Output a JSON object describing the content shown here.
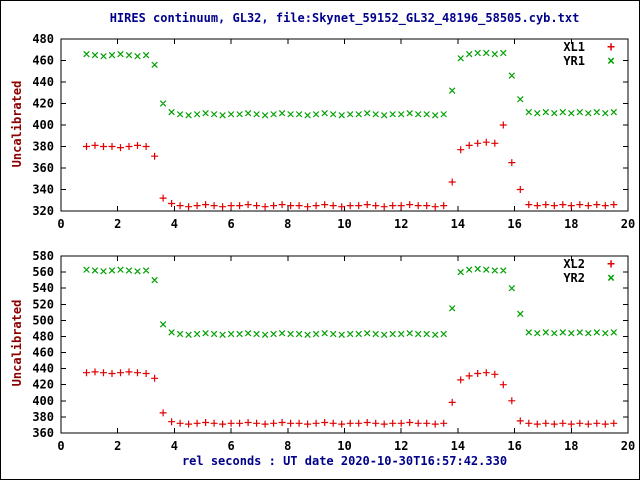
{
  "title": "HIRES continuum, GL32, file:Skynet_59152_GL32_48196_58505.cyb.txt",
  "xlabel": "rel seconds : UT date 2020-10-30T16:57:42.330",
  "colors": {
    "title": "#00008B",
    "xlabel": "#00008B",
    "axis_label": "#8B0000",
    "axis": "#000000",
    "red": "#E00000",
    "green": "#00A000"
  },
  "chart_data": [
    {
      "type": "scatter",
      "ylabel": "Uncalibrated",
      "ylim": [
        320,
        480
      ],
      "ytick_step": 20,
      "xlim": [
        0,
        20
      ],
      "xtick_step": 2,
      "grid": false,
      "legend_position": "top-right-inside",
      "x": [
        0.9,
        1.2,
        1.5,
        1.8,
        2.1,
        2.4,
        2.7,
        3.0,
        3.3,
        3.6,
        3.9,
        4.2,
        4.5,
        4.8,
        5.1,
        5.4,
        5.7,
        6.0,
        6.3,
        6.6,
        6.9,
        7.2,
        7.5,
        7.8,
        8.1,
        8.4,
        8.7,
        9.0,
        9.3,
        9.6,
        9.9,
        10.2,
        10.5,
        10.8,
        11.1,
        11.4,
        11.7,
        12.0,
        12.3,
        12.6,
        12.9,
        13.2,
        13.5,
        13.8,
        14.1,
        14.4,
        14.7,
        15.0,
        15.3,
        15.6,
        15.9,
        16.2,
        16.5,
        16.8,
        17.1,
        17.4,
        17.7,
        18.0,
        18.3,
        18.6,
        18.9,
        19.2,
        19.5
      ],
      "series": [
        {
          "name": "XL1",
          "marker": "plus",
          "marker_glyph": "+",
          "color_key": "red",
          "y": [
            380,
            381,
            380,
            380,
            379,
            380,
            381,
            380,
            371,
            332,
            327,
            325,
            324,
            325,
            326,
            325,
            324,
            325,
            325,
            326,
            325,
            324,
            325,
            326,
            325,
            325,
            324,
            325,
            326,
            325,
            324,
            325,
            325,
            326,
            325,
            324,
            325,
            325,
            326,
            325,
            325,
            324,
            325,
            347,
            377,
            381,
            383,
            384,
            383,
            400,
            365,
            340,
            326,
            325,
            326,
            325,
            326,
            325,
            326,
            325,
            326,
            325,
            326
          ]
        },
        {
          "name": "YR1",
          "marker": "cross",
          "marker_glyph": "×",
          "color_key": "green",
          "y": [
            466,
            465,
            464,
            465,
            466,
            465,
            464,
            465,
            456,
            420,
            412,
            410,
            409,
            410,
            411,
            410,
            409,
            410,
            410,
            411,
            410,
            409,
            410,
            411,
            410,
            410,
            409,
            410,
            411,
            410,
            409,
            410,
            410,
            411,
            410,
            409,
            410,
            410,
            411,
            410,
            410,
            409,
            410,
            432,
            462,
            466,
            467,
            467,
            466,
            467,
            446,
            424,
            412,
            411,
            412,
            411,
            412,
            411,
            412,
            411,
            412,
            411,
            412
          ]
        }
      ]
    },
    {
      "type": "scatter",
      "ylabel": "Uncalibrated",
      "ylim": [
        360,
        580
      ],
      "ytick_step": 20,
      "xlim": [
        0,
        20
      ],
      "xtick_step": 2,
      "grid": false,
      "legend_position": "top-right-inside",
      "x": [
        0.9,
        1.2,
        1.5,
        1.8,
        2.1,
        2.4,
        2.7,
        3.0,
        3.3,
        3.6,
        3.9,
        4.2,
        4.5,
        4.8,
        5.1,
        5.4,
        5.7,
        6.0,
        6.3,
        6.6,
        6.9,
        7.2,
        7.5,
        7.8,
        8.1,
        8.4,
        8.7,
        9.0,
        9.3,
        9.6,
        9.9,
        10.2,
        10.5,
        10.8,
        11.1,
        11.4,
        11.7,
        12.0,
        12.3,
        12.6,
        12.9,
        13.2,
        13.5,
        13.8,
        14.1,
        14.4,
        14.7,
        15.0,
        15.3,
        15.6,
        15.9,
        16.2,
        16.5,
        16.8,
        17.1,
        17.4,
        17.7,
        18.0,
        18.3,
        18.6,
        18.9,
        19.2,
        19.5
      ],
      "series": [
        {
          "name": "XL2",
          "marker": "plus",
          "marker_glyph": "+",
          "color_key": "red",
          "y": [
            435,
            436,
            435,
            434,
            435,
            436,
            435,
            434,
            428,
            385,
            374,
            372,
            371,
            372,
            373,
            372,
            371,
            372,
            372,
            373,
            372,
            371,
            372,
            373,
            372,
            372,
            371,
            372,
            373,
            372,
            371,
            372,
            372,
            373,
            372,
            371,
            372,
            372,
            373,
            372,
            372,
            371,
            372,
            398,
            426,
            431,
            434,
            435,
            433,
            420,
            400,
            375,
            372,
            371,
            372,
            371,
            372,
            371,
            372,
            371,
            372,
            371,
            372
          ]
        },
        {
          "name": "YR2",
          "marker": "cross",
          "marker_glyph": "×",
          "color_key": "green",
          "y": [
            563,
            562,
            561,
            562,
            563,
            562,
            561,
            562,
            550,
            495,
            485,
            483,
            482,
            483,
            484,
            483,
            482,
            483,
            483,
            484,
            483,
            482,
            483,
            484,
            483,
            483,
            482,
            483,
            484,
            483,
            482,
            483,
            483,
            484,
            483,
            482,
            483,
            483,
            484,
            483,
            483,
            482,
            483,
            515,
            560,
            563,
            564,
            563,
            562,
            562,
            540,
            508,
            485,
            484,
            485,
            484,
            485,
            484,
            485,
            484,
            485,
            484,
            485
          ]
        }
      ]
    }
  ]
}
